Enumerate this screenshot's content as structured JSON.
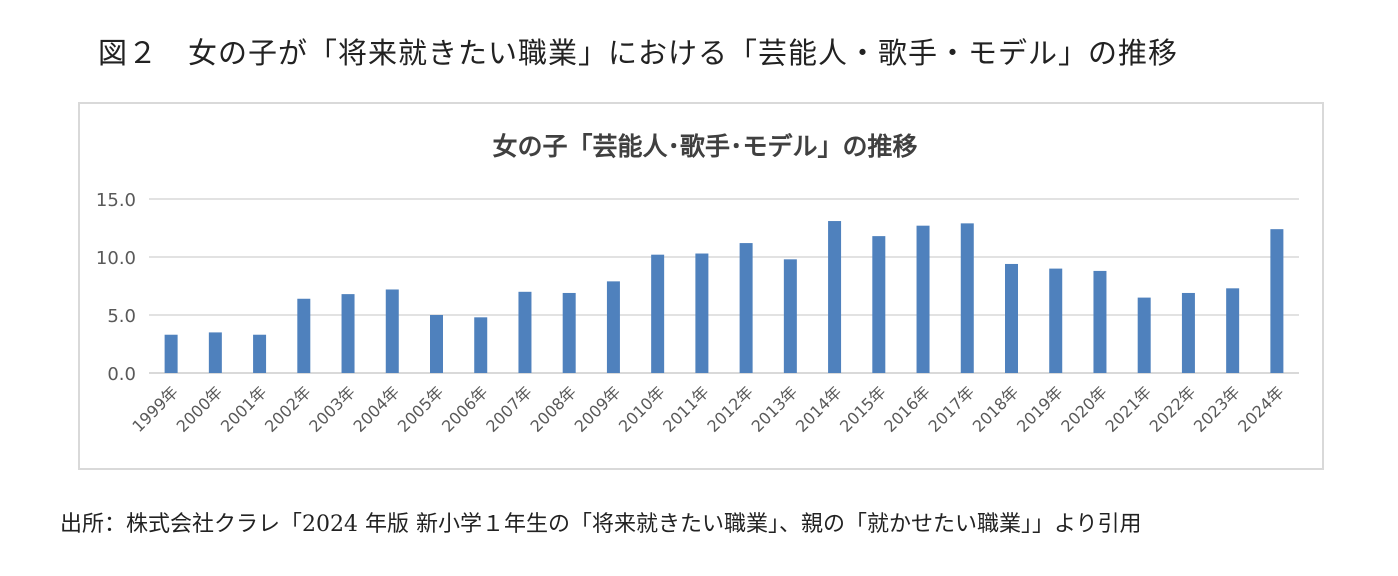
{
  "figure_caption": "図２　女の子が「将来就きたい職業」における「芸能人・歌手・モデル」の推移",
  "source_note": "出所：株式会社クラレ「2024 年版 新小学１年生の「将来就きたい職業」、親の「就かせたい職業」」より引用",
  "colors": {
    "bar": "#4f81bd",
    "grid": "#d9d9d9",
    "axis_text": "#595959",
    "title_text": "#404040"
  },
  "chart_data": {
    "type": "bar",
    "title": "女の子「芸能人･歌手･モデル」の推移",
    "xlabel": "",
    "ylabel": "",
    "ylim": [
      0,
      15
    ],
    "yticks": [
      "0.0",
      "5.0",
      "10.0",
      "15.0"
    ],
    "grid": true,
    "legend": "none",
    "categories": [
      "1999年",
      "2000年",
      "2001年",
      "2002年",
      "2003年",
      "2004年",
      "2005年",
      "2006年",
      "2007年",
      "2008年",
      "2009年",
      "2010年",
      "2011年",
      "2012年",
      "2013年",
      "2014年",
      "2015年",
      "2016年",
      "2017年",
      "2018年",
      "2019年",
      "2020年",
      "2021年",
      "2022年",
      "2023年",
      "2024年"
    ],
    "values": [
      3.3,
      3.5,
      3.3,
      6.4,
      6.8,
      7.2,
      5.0,
      4.8,
      7.0,
      6.9,
      7.9,
      10.2,
      10.3,
      11.2,
      9.8,
      13.1,
      11.8,
      12.7,
      12.9,
      9.4,
      9.0,
      8.8,
      6.5,
      6.9,
      7.3,
      12.4
    ]
  }
}
